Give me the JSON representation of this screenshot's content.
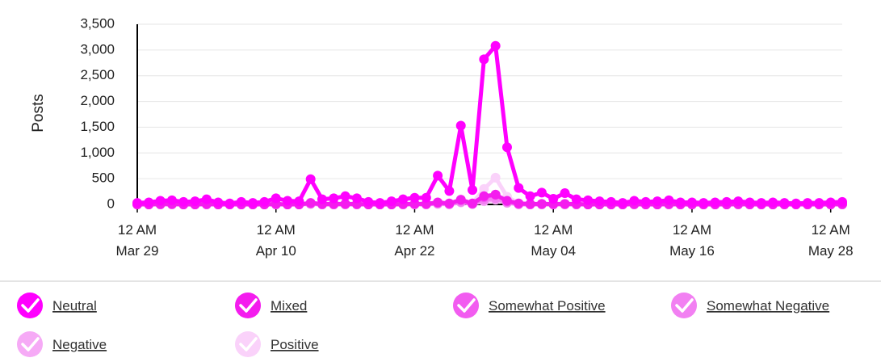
{
  "chart_data": {
    "type": "line",
    "y_label": "Posts",
    "categories": [
      "12 AM Mar 29",
      null,
      null,
      null,
      null,
      null,
      null,
      null,
      null,
      null,
      null,
      null,
      "12 AM Apr 10",
      null,
      null,
      null,
      null,
      null,
      null,
      null,
      null,
      null,
      null,
      null,
      "12 AM Apr 22",
      null,
      null,
      null,
      null,
      null,
      null,
      null,
      null,
      null,
      null,
      null,
      "12 AM May 04",
      null,
      null,
      null,
      null,
      null,
      null,
      null,
      null,
      null,
      null,
      null,
      "12 AM May 16",
      null,
      null,
      null,
      null,
      null,
      null,
      null,
      null,
      null,
      null,
      null,
      "12 AM May 28",
      null
    ],
    "ylim": [
      0,
      3500
    ],
    "yticks": [
      0,
      {
        "value": 500,
        "label": "500"
      },
      {
        "value": 1000,
        "label": "1,000"
      },
      {
        "value": 1500,
        "label": "1,500"
      },
      {
        "value": 2000,
        "label": "2,000"
      },
      {
        "value": 2500,
        "label": "2,500"
      },
      {
        "value": 3000,
        "label": "3,000"
      },
      {
        "value": 3500,
        "label": "3,500"
      }
    ],
    "grid": true,
    "series": [
      {
        "name": "Neutral",
        "color": "#ff00ff",
        "values": [
          30,
          40,
          70,
          80,
          50,
          60,
          100,
          40,
          20,
          50,
          30,
          50,
          120,
          70,
          60,
          490,
          100,
          120,
          160,
          120,
          50,
          30,
          60,
          100,
          130,
          130,
          560,
          260,
          1530,
          280,
          2820,
          3080,
          1110,
          320,
          160,
          230,
          110,
          220,
          100,
          80,
          60,
          50,
          30,
          70,
          50,
          60,
          80,
          40,
          40,
          30,
          40,
          50,
          60,
          40,
          30,
          40,
          30,
          20,
          30,
          30,
          40,
          50
        ]
      },
      {
        "name": "Mixed",
        "color": "#f41cee",
        "values": [
          0,
          0,
          10,
          10,
          0,
          0,
          10,
          0,
          0,
          0,
          0,
          0,
          10,
          0,
          0,
          30,
          10,
          10,
          10,
          10,
          0,
          0,
          0,
          10,
          10,
          10,
          40,
          20,
          90,
          20,
          160,
          190,
          70,
          20,
          10,
          10,
          10,
          10,
          10,
          0,
          0,
          0,
          0,
          10,
          0,
          0,
          10,
          0,
          0,
          0,
          0,
          0,
          10,
          0,
          0,
          0,
          0,
          0,
          0,
          0,
          0,
          10
        ]
      },
      {
        "name": "Somewhat Positive",
        "color": "#f25cf0",
        "values": [
          0,
          0,
          0,
          10,
          0,
          0,
          0,
          0,
          0,
          0,
          0,
          0,
          0,
          0,
          0,
          20,
          0,
          0,
          10,
          0,
          0,
          0,
          0,
          0,
          10,
          10,
          30,
          10,
          80,
          10,
          140,
          190,
          60,
          10,
          0,
          10,
          0,
          10,
          0,
          0,
          0,
          0,
          0,
          0,
          0,
          0,
          0,
          0,
          0,
          0,
          0,
          0,
          0,
          0,
          0,
          0,
          0,
          0,
          0,
          0,
          0,
          0
        ]
      },
      {
        "name": "Somewhat Negative",
        "color": "#f280f2",
        "values": [
          0,
          0,
          0,
          0,
          0,
          0,
          0,
          0,
          0,
          0,
          0,
          0,
          0,
          0,
          0,
          10,
          0,
          0,
          0,
          0,
          0,
          0,
          0,
          0,
          0,
          0,
          20,
          10,
          50,
          10,
          90,
          120,
          40,
          10,
          0,
          0,
          0,
          0,
          0,
          0,
          0,
          0,
          0,
          0,
          0,
          0,
          0,
          0,
          0,
          0,
          0,
          0,
          0,
          0,
          0,
          0,
          0,
          0,
          0,
          0,
          0,
          0
        ]
      },
      {
        "name": "Negative",
        "color": "#f6aaf6",
        "values": [
          0,
          0,
          0,
          0,
          0,
          0,
          0,
          0,
          0,
          0,
          0,
          0,
          0,
          0,
          0,
          10,
          0,
          0,
          0,
          0,
          0,
          0,
          0,
          0,
          0,
          0,
          10,
          0,
          40,
          10,
          60,
          90,
          30,
          0,
          0,
          0,
          0,
          0,
          0,
          0,
          0,
          0,
          0,
          0,
          0,
          0,
          0,
          0,
          0,
          0,
          0,
          0,
          0,
          0,
          0,
          0,
          0,
          0,
          0,
          0,
          0,
          0
        ]
      },
      {
        "name": "Positive",
        "color": "#fad2fa",
        "values": [
          0,
          0,
          0,
          0,
          0,
          0,
          0,
          0,
          0,
          0,
          0,
          0,
          0,
          0,
          0,
          20,
          0,
          0,
          0,
          0,
          0,
          0,
          0,
          0,
          0,
          0,
          20,
          10,
          100,
          20,
          300,
          520,
          150,
          20,
          0,
          10,
          0,
          10,
          0,
          0,
          0,
          0,
          0,
          0,
          0,
          0,
          0,
          0,
          0,
          0,
          0,
          0,
          0,
          0,
          0,
          0,
          0,
          0,
          0,
          0,
          0,
          0
        ]
      }
    ]
  }
}
